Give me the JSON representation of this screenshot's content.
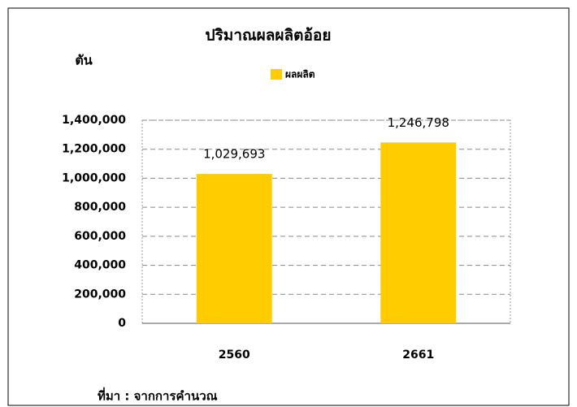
{
  "chart_data": {
    "type": "bar",
    "title": "ปริมาณผลผลิตอ้อย",
    "ylabel": "ตัน",
    "legend": "ผลผลิต",
    "categories": [
      "2560",
      "2661"
    ],
    "values": [
      1029693,
      1246798
    ],
    "value_labels": [
      "1,029,693",
      "1,246,798"
    ],
    "color": "#ffcc00",
    "ylim": [
      0,
      1400000
    ],
    "yticks": [
      0,
      {
        "value": 200000,
        "label": "200,000"
      },
      {
        "value": 400000,
        "label": "400,000"
      },
      {
        "value": 600000,
        "label": "600,000"
      },
      {
        "value": 800000,
        "label": "800,000"
      },
      {
        "value": 1000000,
        "label": "1,000,000"
      },
      {
        "value": 1200000,
        "label": "1,200,000"
      },
      {
        "value": 1400000,
        "label": "1,400,000"
      }
    ],
    "grid": true,
    "source": "ที่มา : จากการคำนวณ"
  }
}
